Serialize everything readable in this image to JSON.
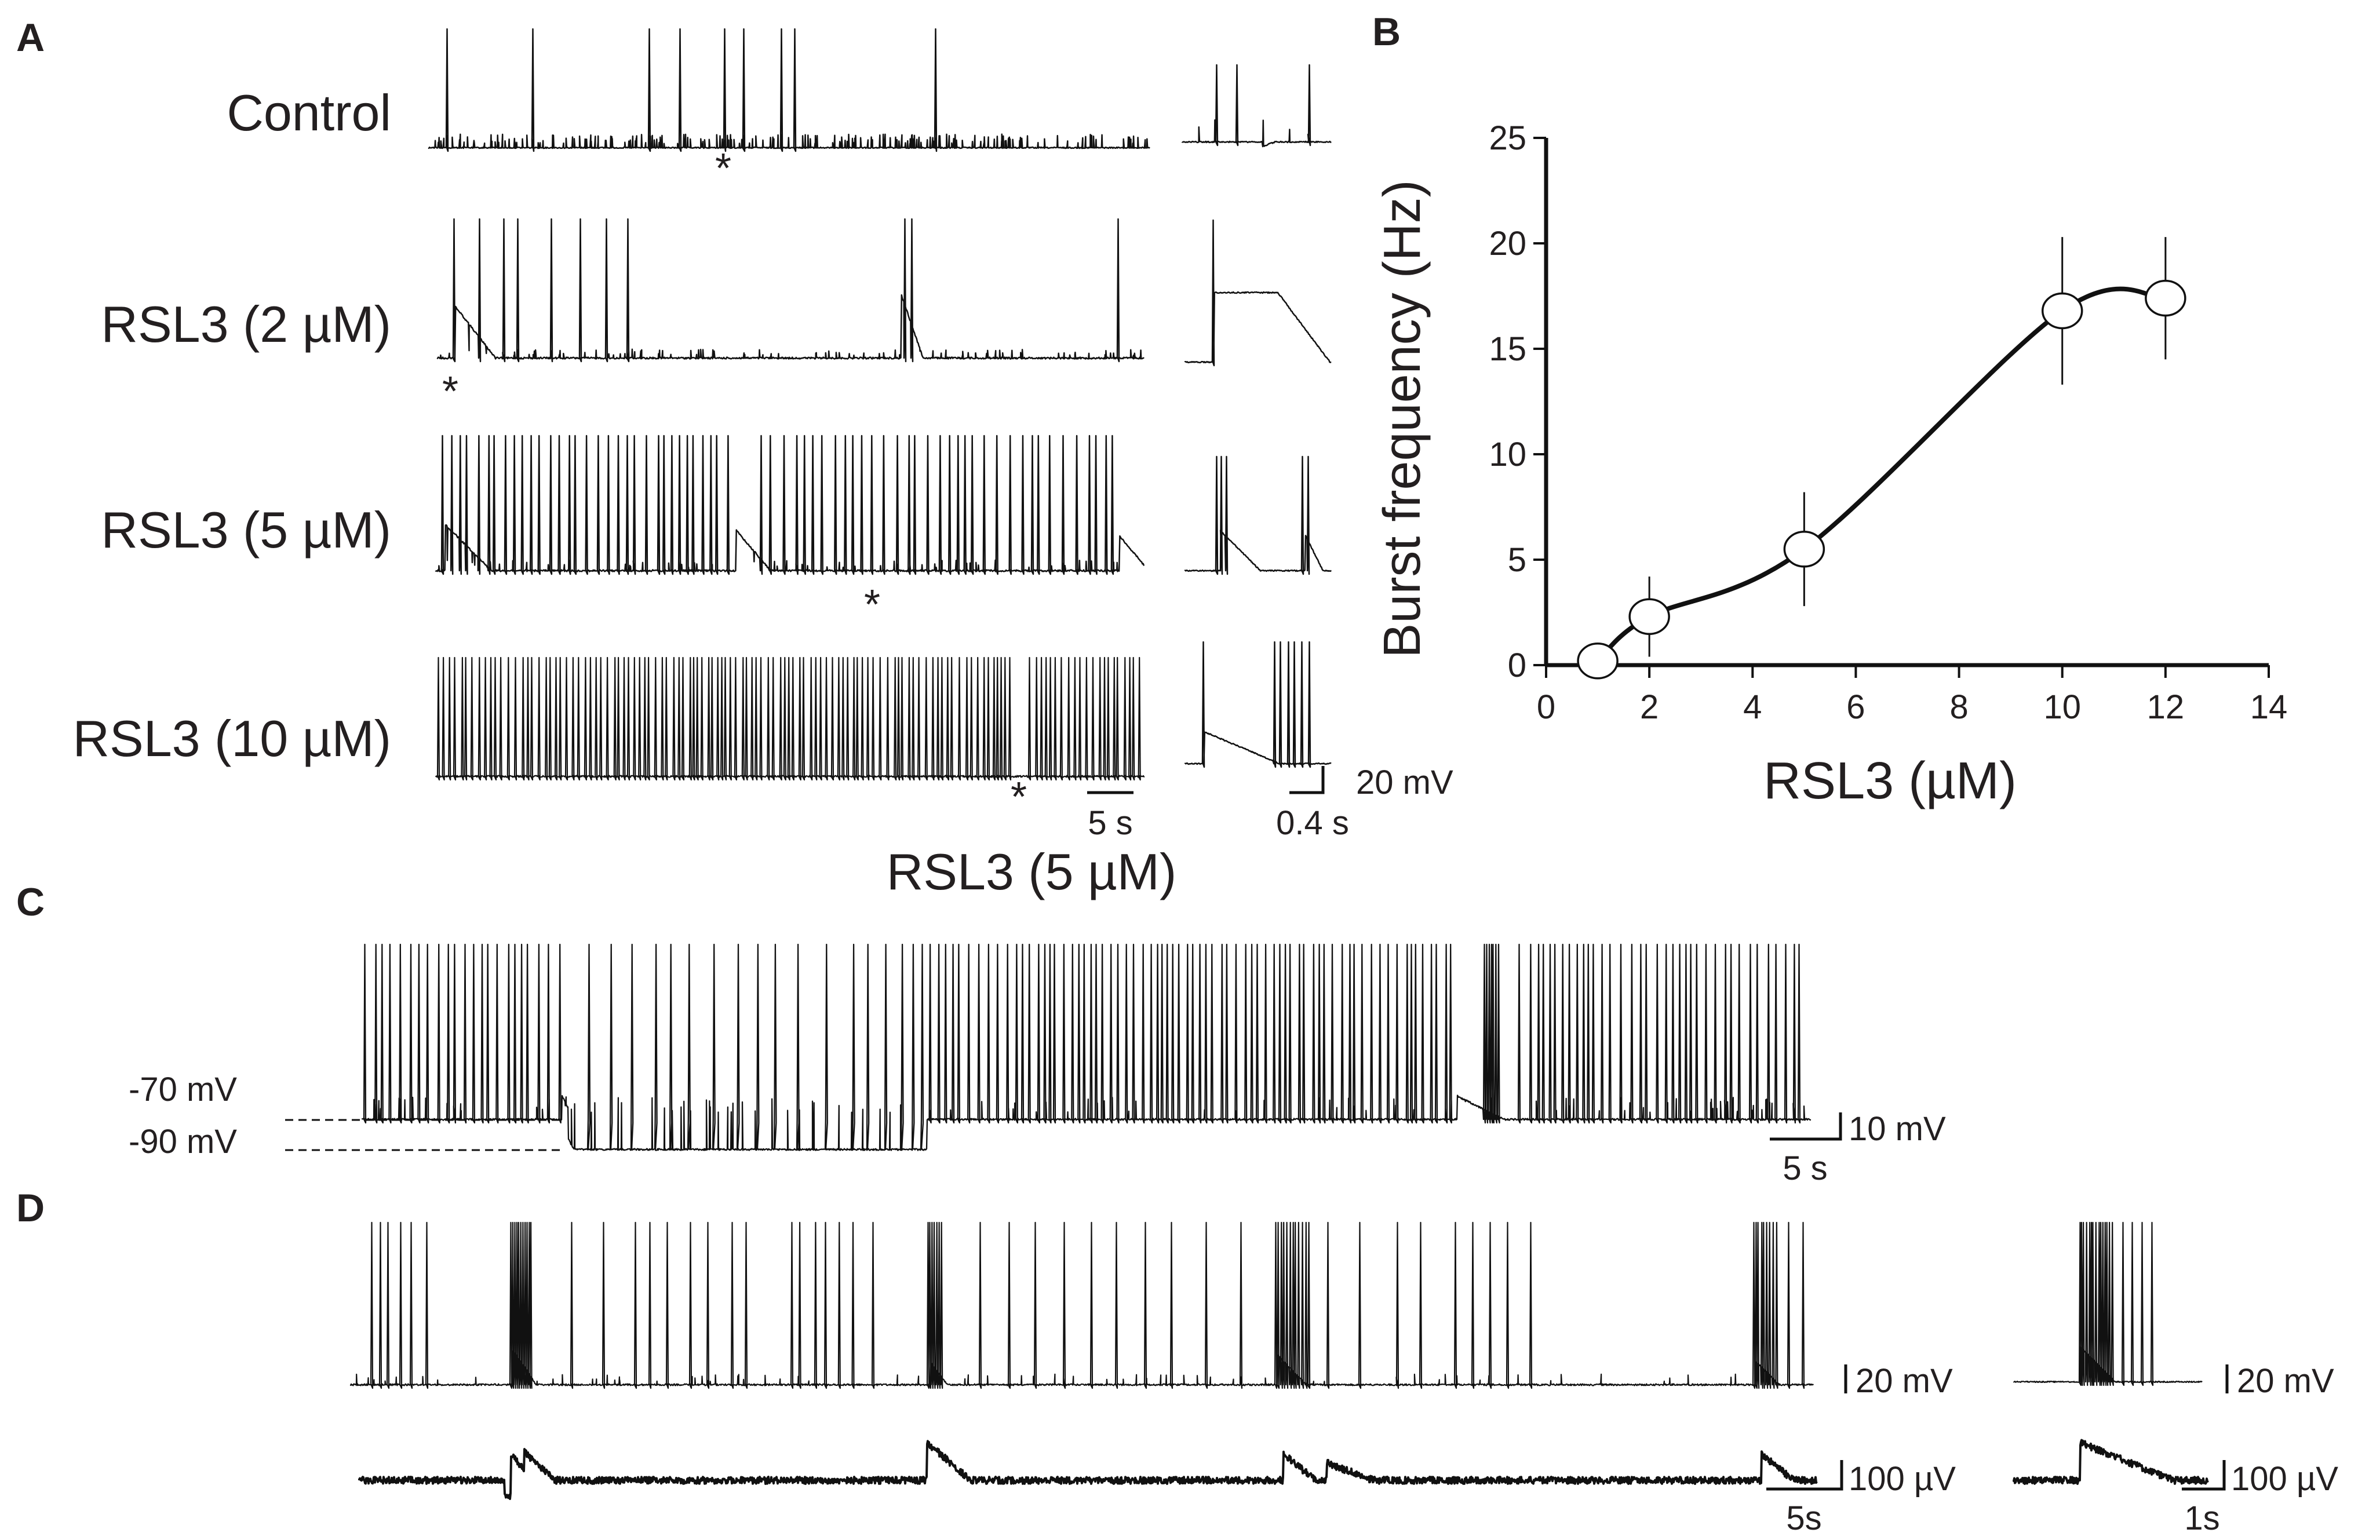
{
  "panels": {
    "A": {
      "letter": "A",
      "traces": [
        {
          "label": "Control",
          "asterisk": "*"
        },
        {
          "label": "RSL3 (2 µM)",
          "asterisk": "*"
        },
        {
          "label": "RSL3 (5 µM)",
          "asterisk": "*"
        },
        {
          "label": "RSL3 (10 µM)",
          "asterisk": "*"
        }
      ],
      "scale_time_main": "5 s",
      "scale_time_inset": "0.4 s",
      "scale_voltage": "20 mV"
    },
    "C": {
      "letter": "C",
      "title": "RSL3 (5 µM)",
      "level_upper": "-70 mV",
      "level_lower": "-90 mV",
      "scale_voltage": "10 mV",
      "scale_time": "5 s"
    },
    "D": {
      "letter": "D",
      "scale_voltage_main": "20 mV",
      "scale_field_main": "100 µV",
      "scale_time_main": "5s",
      "scale_voltage_inset": "20 mV",
      "scale_field_inset": "100 µV",
      "scale_time_inset": "1s"
    }
  },
  "chart_data": {
    "type": "line",
    "panel_letter": "B",
    "xlabel": "RSL3 (µM)",
    "ylabel": "Burst frequency (Hz)",
    "xlim": [
      0,
      14
    ],
    "ylim": [
      0,
      25
    ],
    "xticks": [
      0,
      2,
      4,
      6,
      8,
      10,
      12,
      14
    ],
    "yticks": [
      0,
      5,
      10,
      15,
      20,
      25
    ],
    "grid": false,
    "series": [
      {
        "x": [
          1,
          2,
          5,
          10,
          12
        ],
        "y": [
          0.2,
          2.3,
          5.5,
          16.8,
          17.4
        ],
        "error": [
          0.3,
          1.9,
          2.7,
          3.5,
          2.9
        ],
        "marker": "open-circle",
        "line": "smooth"
      }
    ],
    "colors": {
      "line": "#111111",
      "marker_fill": "#ffffff"
    }
  }
}
